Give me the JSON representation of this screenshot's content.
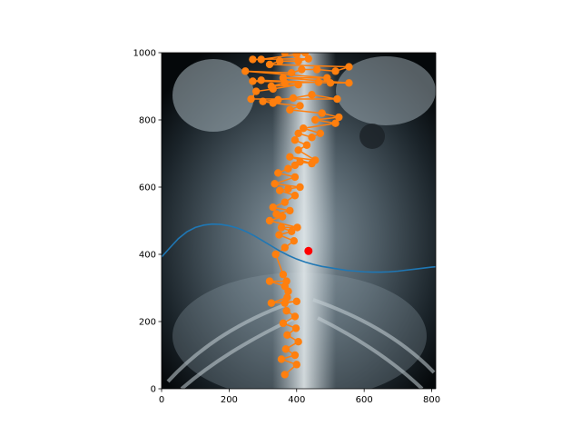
{
  "chart_data": {
    "type": "scatter",
    "title": "",
    "xlabel": "",
    "ylabel": "",
    "xlim": [
      0,
      812
    ],
    "ylim": [
      0,
      1000
    ],
    "x_ticks": [
      0,
      200,
      400,
      600,
      800
    ],
    "y_ticks": [
      0,
      200,
      400,
      600,
      800,
      1000
    ],
    "x_tick_labels": [
      "0",
      "200",
      "400",
      "600",
      "800"
    ],
    "y_tick_labels": [
      "0",
      "200",
      "400",
      "600",
      "800",
      "1000"
    ],
    "grid": false,
    "background_image": "abdominal-xray",
    "colors": {
      "landmarks": "#ff7f0e",
      "curve": "#1f77b4",
      "marker": "#ff0000"
    },
    "series": [
      {
        "type": "line-markers",
        "color": "#ff7f0e",
        "points": [
          [
            365,
            42
          ],
          [
            400,
            72
          ],
          [
            355,
            88
          ],
          [
            395,
            100
          ],
          [
            368,
            118
          ],
          [
            405,
            140
          ],
          [
            372,
            160
          ],
          [
            398,
            180
          ],
          [
            360,
            195
          ],
          [
            395,
            215
          ],
          [
            370,
            232
          ],
          [
            365,
            255
          ],
          [
            400,
            260
          ],
          [
            325,
            255
          ],
          [
            372,
            272
          ],
          [
            375,
            290
          ],
          [
            365,
            305
          ],
          [
            320,
            320
          ],
          [
            370,
            320
          ],
          [
            360,
            340
          ],
          [
            338,
            400
          ],
          [
            365,
            420
          ],
          [
            392,
            440
          ],
          [
            348,
            458
          ],
          [
            385,
            468
          ],
          [
            355,
            480
          ],
          [
            402,
            480
          ],
          [
            320,
            500
          ],
          [
            358,
            512
          ],
          [
            340,
            520
          ],
          [
            380,
            530
          ],
          [
            330,
            540
          ],
          [
            365,
            555
          ],
          [
            395,
            575
          ],
          [
            350,
            590
          ],
          [
            375,
            595
          ],
          [
            410,
            600
          ],
          [
            335,
            610
          ],
          [
            395,
            630
          ],
          [
            345,
            642
          ],
          [
            375,
            655
          ],
          [
            395,
            665
          ],
          [
            410,
            675
          ],
          [
            445,
            670
          ],
          [
            380,
            690
          ],
          [
            455,
            680
          ],
          [
            405,
            710
          ],
          [
            430,
            725
          ],
          [
            395,
            740
          ],
          [
            405,
            760
          ],
          [
            445,
            748
          ],
          [
            470,
            760
          ],
          [
            420,
            775
          ],
          [
            515,
            790
          ],
          [
            455,
            800
          ],
          [
            525,
            808
          ],
          [
            475,
            820
          ],
          [
            380,
            830
          ],
          [
            410,
            842
          ],
          [
            330,
            850
          ],
          [
            300,
            855
          ],
          [
            345,
            860
          ],
          [
            390,
            865
          ],
          [
            445,
            875
          ],
          [
            520,
            862
          ],
          [
            265,
            862
          ],
          [
            280,
            885
          ],
          [
            330,
            892
          ],
          [
            405,
            905
          ],
          [
            325,
            900
          ],
          [
            365,
            910
          ],
          [
            465,
            912
          ],
          [
            270,
            915
          ],
          [
            295,
            918
          ],
          [
            500,
            910
          ],
          [
            555,
            910
          ],
          [
            360,
            925
          ],
          [
            490,
            925
          ],
          [
            248,
            945
          ],
          [
            385,
            940
          ],
          [
            415,
            950
          ],
          [
            460,
            950
          ],
          [
            515,
            945
          ],
          [
            555,
            958
          ],
          [
            320,
            965
          ],
          [
            350,
            975
          ],
          [
            405,
            975
          ],
          [
            435,
            982
          ],
          [
            270,
            980
          ],
          [
            295,
            980
          ],
          [
            400,
            995
          ],
          [
            425,
            1000
          ],
          [
            365,
            1000
          ]
        ]
      }
    ],
    "curve": {
      "color": "#1f77b4",
      "points": [
        [
          0,
          392
        ],
        [
          25,
          420
        ],
        [
          50,
          447
        ],
        [
          75,
          467
        ],
        [
          100,
          480
        ],
        [
          125,
          487
        ],
        [
          150,
          490
        ],
        [
          175,
          489
        ],
        [
          200,
          485
        ],
        [
          225,
          478
        ],
        [
          250,
          468
        ],
        [
          275,
          455
        ],
        [
          300,
          440
        ],
        [
          325,
          425
        ],
        [
          350,
          410
        ],
        [
          375,
          397
        ],
        [
          400,
          386
        ],
        [
          425,
          377
        ],
        [
          450,
          370
        ],
        [
          475,
          364
        ],
        [
          500,
          360
        ],
        [
          525,
          356
        ],
        [
          550,
          352
        ],
        [
          575,
          350
        ],
        [
          600,
          348
        ],
        [
          625,
          347
        ],
        [
          650,
          347
        ],
        [
          675,
          348
        ],
        [
          700,
          350
        ],
        [
          725,
          353
        ],
        [
          750,
          356
        ],
        [
          775,
          359
        ],
        [
          800,
          362
        ],
        [
          812,
          363
        ]
      ]
    },
    "highlight": {
      "x": 435,
      "y": 410,
      "color": "#ff0000"
    }
  }
}
